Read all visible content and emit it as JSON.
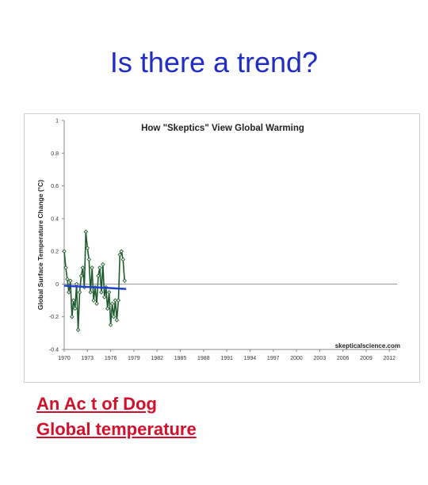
{
  "slide": {
    "title": "Is there a trend?"
  },
  "links": [
    {
      "label": "An Ac t of Dog"
    },
    {
      "label": "Global temperature"
    }
  ],
  "chart_data": {
    "type": "line",
    "title": "How \"Skeptics\" View Global Warming",
    "xlabel": "",
    "ylabel": "Global Surface Temperature Change (°C)",
    "watermark": "skepticalscience.com",
    "xlim": [
      1970,
      2013
    ],
    "ylim": [
      -0.4,
      1
    ],
    "yticks": [
      1,
      0.8,
      0.6,
      0.4,
      0.2,
      0,
      -0.2,
      -0.4
    ],
    "ytick_labels": [
      "1",
      "0.8",
      "0.6",
      "0.4",
      "0.2",
      "0",
      "-0.2",
      "-0.4"
    ],
    "xticks": [
      1970,
      1973,
      1976,
      1979,
      1982,
      1985,
      1988,
      1991,
      1994,
      1997,
      2000,
      2003,
      2006,
      2009,
      2012
    ],
    "xtick_labels": [
      "1970",
      "1973",
      "1976",
      "1979",
      "1982",
      "1985",
      "1988",
      "1991",
      "1994",
      "1997",
      "2000",
      "2003",
      "2006",
      "2009",
      "2012"
    ],
    "grid": false,
    "series": [
      {
        "color": "#1e5b2c",
        "marker": "diamond",
        "x": [
          1970.0,
          1970.2,
          1970.4,
          1970.6,
          1970.8,
          1971.0,
          1971.2,
          1971.4,
          1971.6,
          1971.8,
          1972.0,
          1972.2,
          1972.4,
          1972.6,
          1972.8,
          1973.0,
          1973.2,
          1973.4,
          1973.6,
          1973.8,
          1974.0,
          1974.2,
          1974.4,
          1974.6,
          1974.8,
          1975.0,
          1975.2,
          1975.4,
          1975.6,
          1975.8,
          1976.0,
          1976.2,
          1976.4,
          1976.6,
          1976.8,
          1977.0,
          1977.2,
          1977.4,
          1977.6,
          1977.8
        ],
        "y": [
          0.2,
          0.1,
          0.03,
          -0.05,
          0.02,
          -0.2,
          -0.1,
          -0.15,
          0.0,
          -0.28,
          -0.05,
          0.05,
          0.1,
          -0.02,
          0.32,
          0.22,
          0.15,
          -0.05,
          0.1,
          -0.1,
          -0.02,
          -0.12,
          0.05,
          0.1,
          -0.05,
          0.12,
          -0.08,
          -0.02,
          -0.15,
          -0.05,
          -0.25,
          -0.12,
          -0.2,
          -0.1,
          -0.22,
          -0.1,
          0.18,
          0.2,
          0.15,
          0.02
        ]
      },
      {
        "color": "#1f3fd1",
        "x": [
          1970,
          1978
        ],
        "y": [
          -0.01,
          -0.03
        ]
      }
    ]
  }
}
